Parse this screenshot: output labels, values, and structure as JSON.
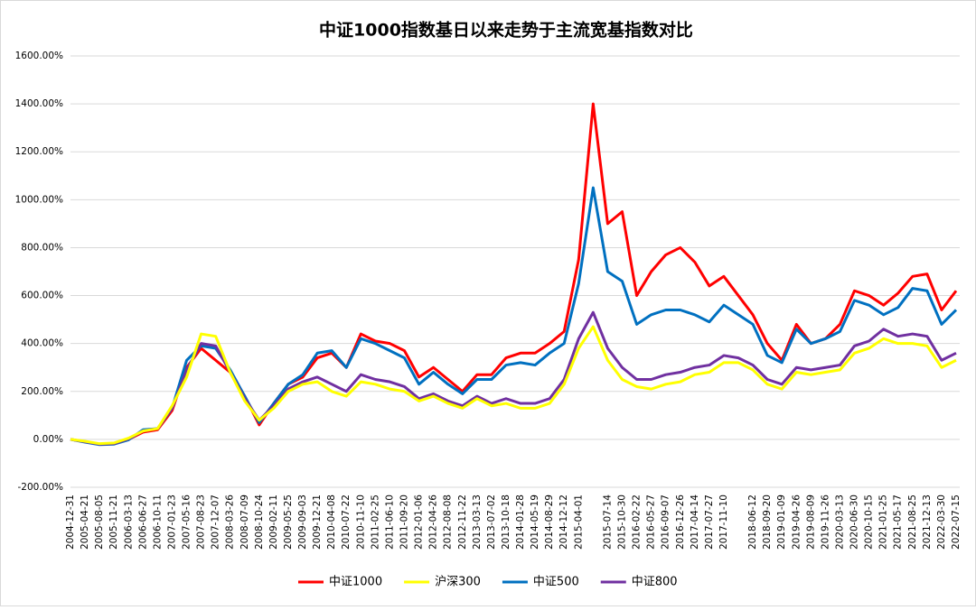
{
  "chart_data": {
    "type": "line",
    "title": "中证1000指数基日以来走势于主流宽基指数对比",
    "categories": [
      "2004-12-31",
      "2005-04-21",
      "2005-08-05",
      "2005-11-21",
      "2006-03-13",
      "2006-06-27",
      "2006-10-11",
      "2007-01-23",
      "2007-05-16",
      "2007-08-23",
      "2007-12-07",
      "2008-03-26",
      "2008-07-09",
      "2008-10-24",
      "2009-02-11",
      "2009-05-25",
      "2009-09-03",
      "2009-12-21",
      "2010-04-08",
      "2010-07-22",
      "2010-11-10",
      "2011-02-25",
      "2011-06-10",
      "2011-09-20",
      "2012-01-06",
      "2012-04-26",
      "2012-08-08",
      "2012-11-22",
      "2013-03-13",
      "2013-07-02",
      "2013-10-18",
      "2014-01-28",
      "2014-05-19",
      "2014-08-29",
      "2014-12-12",
      "2015-04-01",
      null,
      "2015-07-14",
      "2015-10-30",
      "2016-02-22",
      "2016-05-27",
      "2016-09-07",
      "2016-12-26",
      "2017-04-14",
      "2017-07-27",
      "2017-11-10",
      null,
      "2018-06-12",
      "2018-09-20",
      "2019-01-09",
      "2019-04-26",
      "2019-08-09",
      "2019-11-26",
      "2020-03-13",
      "2020-06-30",
      "2020-10-15",
      "2021-01-25",
      "2021-05-17",
      "2021-08-25",
      "2021-12-13",
      "2022-03-30",
      "2022-07-15"
    ],
    "series": [
      {
        "name": "中证1000",
        "color": "#ff0000",
        "values": [
          0,
          -10,
          -20,
          -18,
          0,
          30,
          40,
          120,
          300,
          380,
          330,
          280,
          180,
          60,
          150,
          230,
          260,
          340,
          360,
          300,
          440,
          410,
          400,
          370,
          260,
          300,
          250,
          200,
          270,
          270,
          340,
          360,
          360,
          400,
          450,
          750,
          1400,
          900,
          950,
          600,
          700,
          770,
          800,
          740,
          640,
          680,
          600,
          520,
          400,
          330,
          480,
          400,
          420,
          480,
          620,
          600,
          560,
          610,
          680,
          690,
          540,
          620
        ]
      },
      {
        "name": "沪深300",
        "color": "#ffff00",
        "values": [
          0,
          -8,
          -18,
          -15,
          5,
          35,
          45,
          140,
          260,
          440,
          430,
          280,
          160,
          80,
          130,
          200,
          230,
          240,
          200,
          180,
          240,
          230,
          210,
          200,
          160,
          180,
          150,
          130,
          170,
          140,
          150,
          130,
          130,
          150,
          230,
          380,
          470,
          330,
          250,
          220,
          210,
          230,
          240,
          270,
          280,
          320,
          320,
          290,
          230,
          210,
          280,
          270,
          280,
          290,
          360,
          380,
          420,
          400,
          400,
          390,
          300,
          330
        ]
      },
      {
        "name": "中证500",
        "color": "#0070c0",
        "values": [
          0,
          -12,
          -22,
          -20,
          -2,
          40,
          45,
          130,
          330,
          390,
          380,
          290,
          180,
          70,
          150,
          230,
          270,
          360,
          370,
          300,
          420,
          400,
          370,
          340,
          230,
          280,
          230,
          190,
          250,
          250,
          310,
          320,
          310,
          360,
          400,
          650,
          1050,
          700,
          660,
          480,
          520,
          540,
          540,
          520,
          490,
          560,
          520,
          480,
          350,
          320,
          460,
          400,
          420,
          450,
          580,
          560,
          520,
          550,
          630,
          620,
          480,
          540
        ]
      },
      {
        "name": "中证800",
        "color": "#7030a0",
        "values": [
          0,
          -10,
          -20,
          -18,
          2,
          35,
          45,
          130,
          290,
          400,
          390,
          280,
          170,
          80,
          140,
          210,
          240,
          260,
          230,
          200,
          270,
          250,
          240,
          220,
          170,
          190,
          160,
          140,
          180,
          150,
          170,
          150,
          150,
          170,
          250,
          420,
          530,
          380,
          300,
          250,
          250,
          270,
          280,
          300,
          310,
          350,
          340,
          310,
          250,
          230,
          300,
          290,
          300,
          310,
          390,
          410,
          460,
          430,
          440,
          430,
          330,
          360
        ]
      }
    ],
    "ylim": [
      -200,
      1600
    ],
    "yticks": [
      {
        "value": -200,
        "label": "-200.00%"
      },
      {
        "value": 0,
        "label": "0.00%"
      },
      {
        "value": 200,
        "label": "200.00%"
      },
      {
        "value": 400,
        "label": "400.00%"
      },
      {
        "value": 600,
        "label": "600.00%"
      },
      {
        "value": 800,
        "label": "800.00%"
      },
      {
        "value": 1000,
        "label": "1000.00%"
      },
      {
        "value": 1200,
        "label": "1200.00%"
      },
      {
        "value": 1400,
        "label": "1400.00%"
      },
      {
        "value": 1600,
        "label": "1600.00%"
      }
    ],
    "grid": true
  }
}
